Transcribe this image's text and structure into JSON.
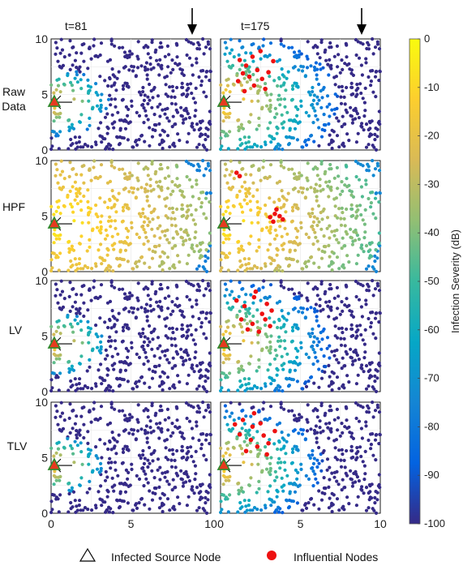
{
  "chart_data": {
    "type": "scatter",
    "time_labels": [
      "t=81",
      "t=175"
    ],
    "row_labels": [
      [
        "Raw",
        "Data"
      ],
      [
        "HPF"
      ],
      [
        "LV"
      ],
      [
        "TLV"
      ]
    ],
    "xlim": [
      0,
      10
    ],
    "ylim": [
      0,
      10
    ],
    "x_ticks": [
      "0",
      "5",
      "10"
    ],
    "y_ticks": [
      "0",
      "5",
      "10"
    ],
    "source_node": {
      "x": 0.2,
      "y": 4.3
    },
    "colorbar": {
      "label": "Infection Severity (dB)",
      "range": [
        -100,
        0
      ],
      "ticks": [
        "0",
        "-10",
        "-20",
        "-30",
        "-40",
        "-50",
        "-60",
        "-70",
        "-80",
        "-90",
        "-100"
      ],
      "colormap": [
        "#352a87",
        "#0363e1",
        "#1485d4",
        "#06a7c6",
        "#38b99e",
        "#92bf73",
        "#d9ba56",
        "#fcce2e",
        "#f9fb0e"
      ]
    },
    "legend": [
      {
        "symbol": "triangle",
        "label": "Infected Source Node"
      },
      {
        "symbol": "red-dot",
        "label": "Influential Nodes"
      }
    ],
    "marker_colors": {
      "source_fill": "#e63a1f",
      "source_edge": "#2e8b2e",
      "influential": "#ee1111",
      "background_node": "#3b2b9a"
    },
    "panels": [
      {
        "row": "Raw Data",
        "time": "t=81",
        "spread_radius": 3.5,
        "decay_db_per_unit": 22,
        "floor_db": -100,
        "influential": []
      },
      {
        "row": "Raw Data",
        "time": "t=175",
        "spread_radius": 7.2,
        "decay_db_per_unit": 12,
        "floor_db": -100,
        "influential": [
          [
            1.2,
            8.1
          ],
          [
            1.6,
            7.6
          ],
          [
            2.0,
            8.4
          ],
          [
            1.4,
            6.9
          ],
          [
            2.3,
            7.2
          ],
          [
            1.1,
            6.2
          ],
          [
            1.8,
            6.6
          ],
          [
            2.6,
            6.4
          ],
          [
            2.1,
            5.8
          ],
          [
            3.0,
            7.0
          ],
          [
            2.8,
            5.5
          ],
          [
            1.5,
            5.3
          ],
          [
            3.3,
            8.0
          ],
          [
            2.5,
            8.9
          ]
        ]
      },
      {
        "row": "HPF",
        "time": "t=81",
        "spread_radius": 10,
        "decay_db_per_unit": 3.5,
        "floor_db": -75,
        "influential": []
      },
      {
        "row": "HPF",
        "time": "t=175",
        "spread_radius": 10,
        "decay_db_per_unit": 4.5,
        "floor_db": -72,
        "influential": [
          [
            1.0,
            8.9
          ],
          [
            1.2,
            8.6
          ],
          [
            3.1,
            4.9
          ],
          [
            3.4,
            5.2
          ],
          [
            3.7,
            5.0
          ],
          [
            3.3,
            4.5
          ],
          [
            3.9,
            4.7
          ],
          [
            3.5,
            5.6
          ]
        ]
      },
      {
        "row": "LV",
        "time": "t=81",
        "spread_radius": 3.2,
        "decay_db_per_unit": 22,
        "floor_db": -100,
        "influential": []
      },
      {
        "row": "LV",
        "time": "t=175",
        "spread_radius": 6.8,
        "decay_db_per_unit": 13,
        "floor_db": -100,
        "influential": [
          [
            1.0,
            8.2
          ],
          [
            1.5,
            7.7
          ],
          [
            2.1,
            8.5
          ],
          [
            2.6,
            7.0
          ],
          [
            1.3,
            6.5
          ],
          [
            2.0,
            6.1
          ],
          [
            2.8,
            6.5
          ],
          [
            2.4,
            5.4
          ],
          [
            3.1,
            5.9
          ],
          [
            2.9,
            7.9
          ],
          [
            1.7,
            5.6
          ],
          [
            3.2,
            7.3
          ],
          [
            2.2,
            9.0
          ]
        ]
      },
      {
        "row": "TLV",
        "time": "t=81",
        "spread_radius": 3.0,
        "decay_db_per_unit": 24,
        "floor_db": -100,
        "influential": []
      },
      {
        "row": "TLV",
        "time": "t=175",
        "spread_radius": 6.2,
        "decay_db_per_unit": 14,
        "floor_db": -100,
        "influential": [
          [
            0.9,
            8.0
          ],
          [
            1.4,
            8.4
          ],
          [
            2.0,
            7.8
          ],
          [
            2.5,
            8.1
          ],
          [
            1.2,
            7.1
          ],
          [
            1.9,
            6.6
          ],
          [
            2.7,
            7.0
          ],
          [
            2.3,
            6.0
          ],
          [
            3.0,
            6.3
          ],
          [
            1.6,
            5.6
          ],
          [
            2.9,
            5.3
          ],
          [
            3.4,
            7.4
          ],
          [
            2.1,
            9.0
          ]
        ]
      }
    ]
  }
}
